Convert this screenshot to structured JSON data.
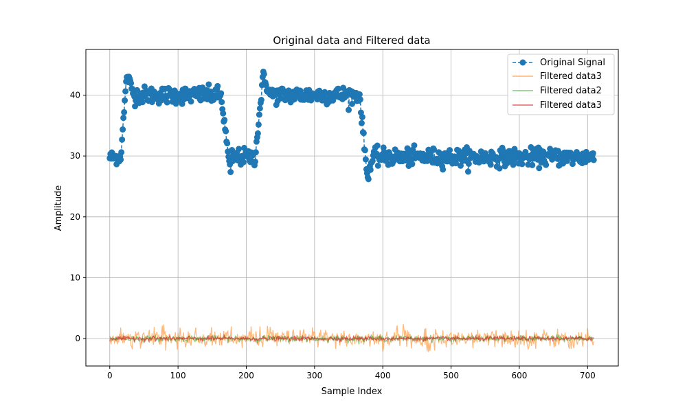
{
  "chart_data": {
    "type": "line",
    "title": "Original data and Filtered data",
    "xlabel": "Sample Index",
    "ylabel": "Amplitude",
    "xlim": [
      -35,
      745
    ],
    "ylim": [
      -4.5,
      47.5
    ],
    "xticks": [
      0,
      100,
      200,
      300,
      400,
      500,
      600,
      700
    ],
    "yticks": [
      0,
      10,
      20,
      30,
      40
    ],
    "grid": true,
    "legend_position": "top-right",
    "n_samples": 710,
    "series": [
      {
        "name": "Original Signal",
        "style": "dashed-line-with-markers",
        "color": "#1f77b4",
        "segments": [
          {
            "x_start": 0,
            "x_end": 16,
            "level": 29.8,
            "noise": 0.8
          },
          {
            "x_start": 16,
            "x_end": 26,
            "level_start": 29.8,
            "level_end": 44.8
          },
          {
            "x_start": 26,
            "x_end": 36,
            "level_start": 43.0,
            "level_end": 40.0
          },
          {
            "x_start": 36,
            "x_end": 163,
            "level": 40.0,
            "noise": 1.0
          },
          {
            "x_start": 163,
            "x_end": 178,
            "level_start": 40.0,
            "level_end": 26.0
          },
          {
            "x_start": 178,
            "x_end": 213,
            "level": 29.8,
            "noise": 1.0
          },
          {
            "x_start": 213,
            "x_end": 226,
            "level_start": 29.8,
            "level_end": 44.5
          },
          {
            "x_start": 226,
            "x_end": 236,
            "level_start": 42.5,
            "level_end": 40.0
          },
          {
            "x_start": 236,
            "x_end": 366,
            "level": 40.0,
            "noise": 1.0
          },
          {
            "x_start": 366,
            "x_end": 378,
            "level_start": 40.0,
            "level_end": 25.8
          },
          {
            "x_start": 378,
            "x_end": 388,
            "level_start": 27.0,
            "level_end": 30.5
          },
          {
            "x_start": 388,
            "x_end": 710,
            "level": 29.8,
            "noise": 1.0
          }
        ]
      },
      {
        "name": "Filtered data3",
        "color": "#ff7f0e",
        "alpha": 0.55,
        "noise": 0.75,
        "spike_max": 2.4,
        "spike_min": -2.2
      },
      {
        "name": "Filtered data2",
        "color": "#2ca02c",
        "alpha": 0.55,
        "noise": 0.25
      },
      {
        "name": "Filtered data3",
        "color": "#d62728",
        "alpha": 0.65,
        "noise": 0.18
      }
    ]
  }
}
